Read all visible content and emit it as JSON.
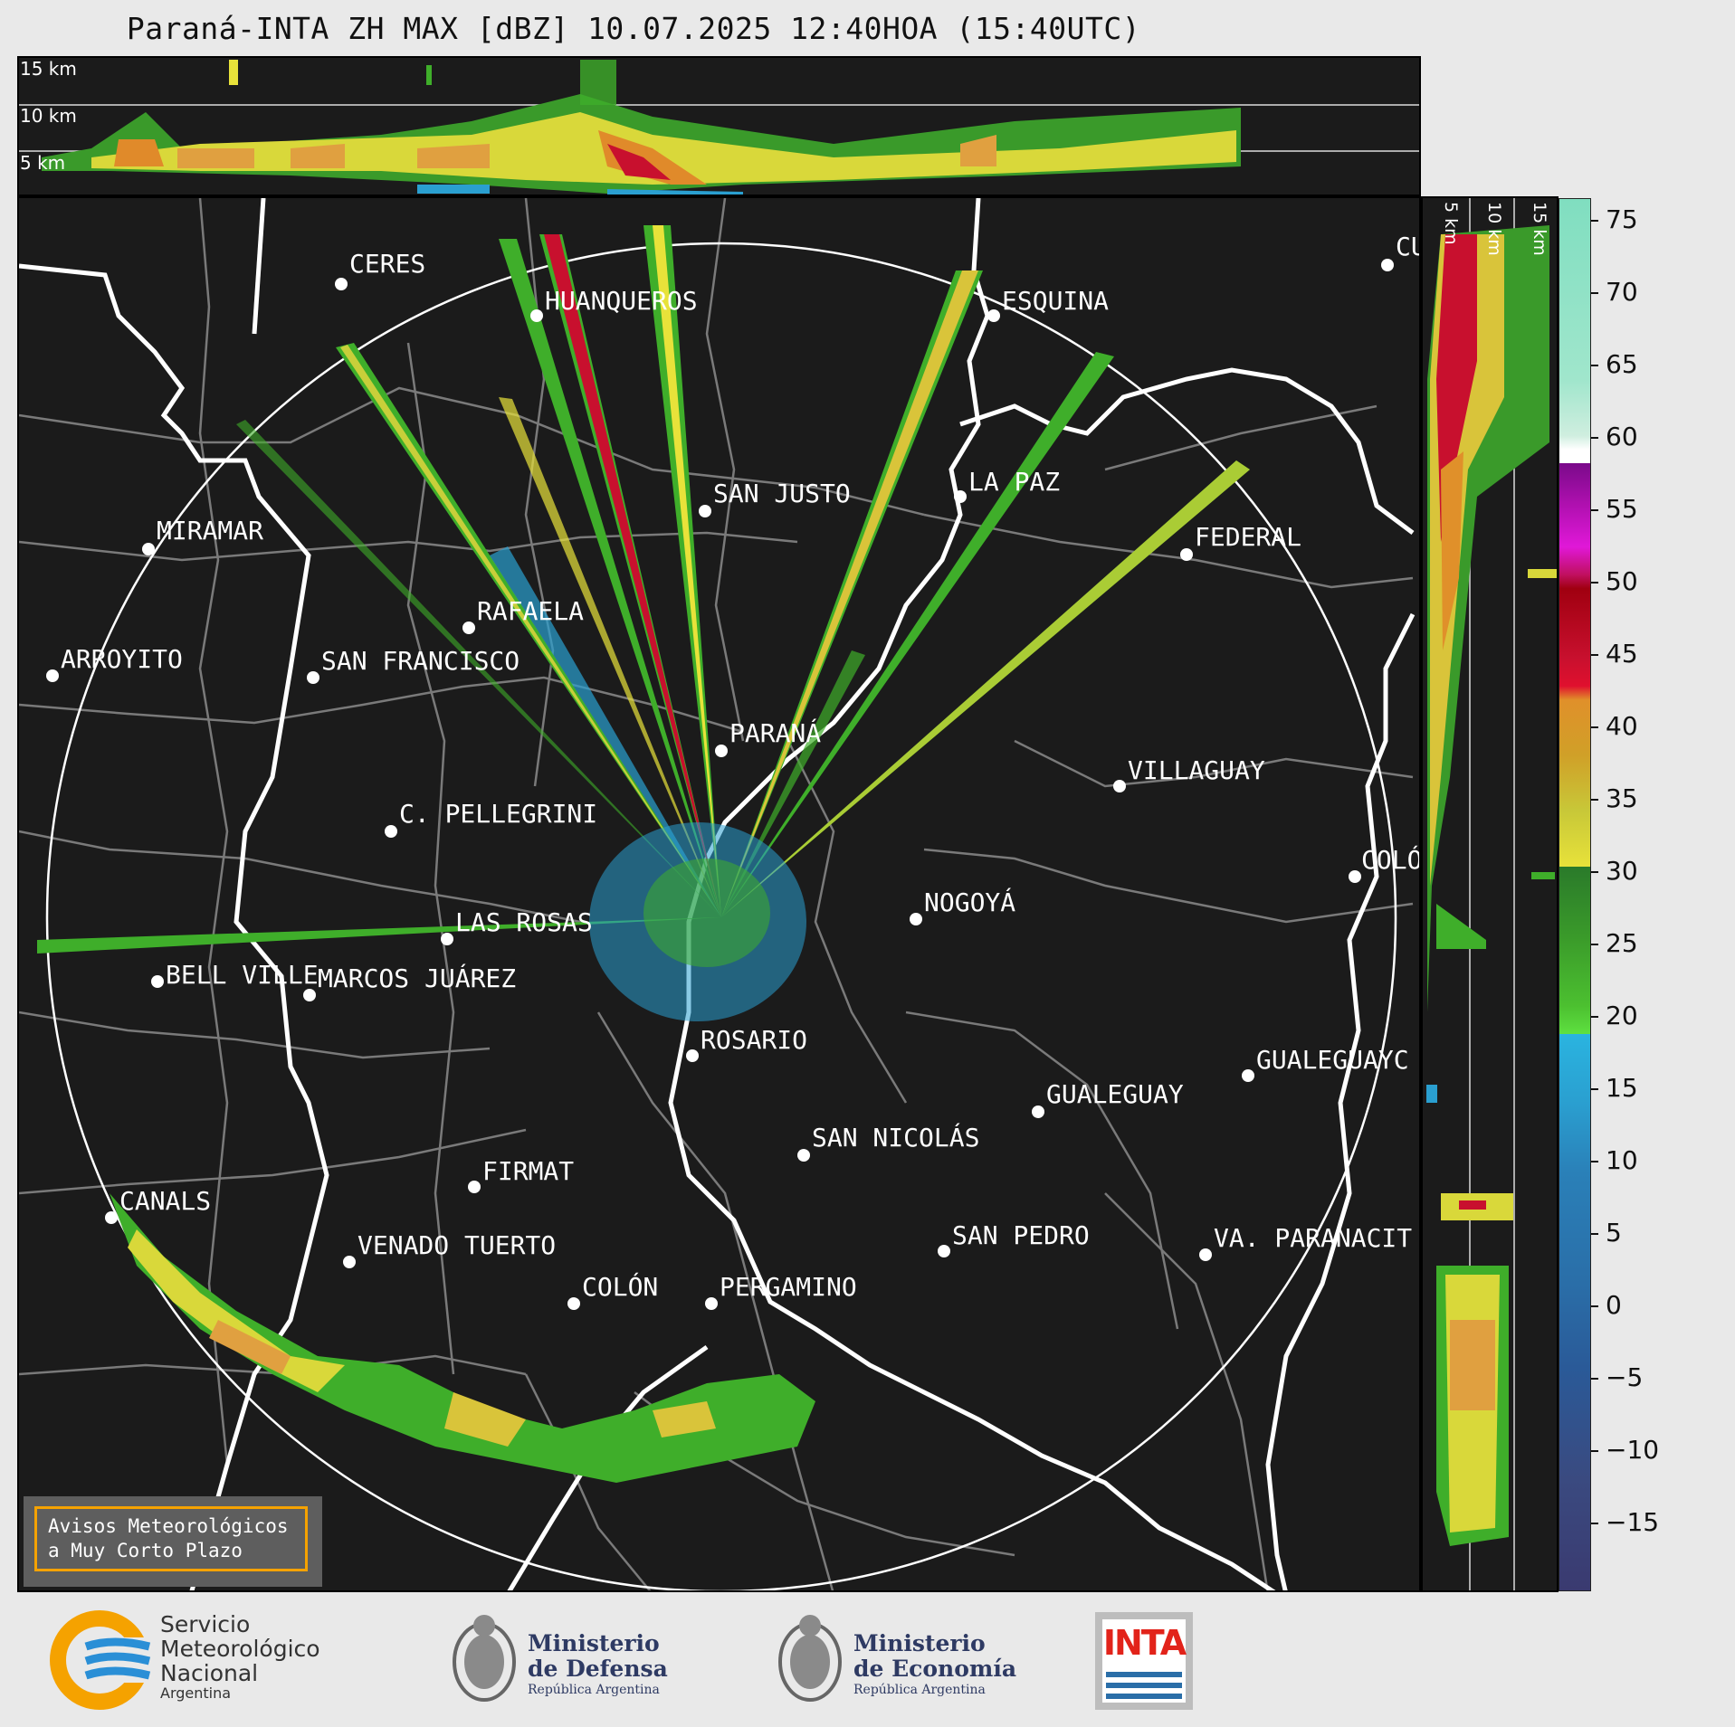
{
  "title": "Paraná-INTA ZH MAX [dBZ] 10.07.2025 12:40HOA (15:40UTC)",
  "height_labels": [
    "15 km",
    "10 km",
    "5 km"
  ],
  "side_labels": [
    "5 km",
    "10 km",
    "15 km"
  ],
  "colorbar": {
    "ticks": [
      "75",
      "70",
      "65",
      "60",
      "55",
      "50",
      "45",
      "40",
      "35",
      "30",
      "25",
      "20",
      "15",
      "10",
      "5",
      "0",
      "−5",
      "−10",
      "−15"
    ]
  },
  "cities": [
    "CERES",
    "HUANQUEROS",
    "ESQUINA",
    "CU",
    "MIRAMAR",
    "SAN JUSTO",
    "LA PAZ",
    "FEDERAL",
    "RAFAELA",
    "ARROYITO",
    "SAN FRANCISCO",
    "PARANÁ",
    "VILLAGUAY",
    "C. PELLEGRINI",
    "COLÓ",
    "NOGOYÁ",
    "LAS ROSAS",
    "BELL VILLE",
    "MARCOS JUÁREZ",
    "ROSARIO",
    "GUALEGUAYC",
    "GUALEGUAY",
    "SAN NICOLÁS",
    "FIRMAT",
    "CANALS",
    "SAN PEDRO",
    "VENADO TUERTO",
    "VA. PARANACIT",
    "COLÓN",
    "PERGAMINO"
  ],
  "notice": {
    "line1": "Avisos Meteorológicos",
    "line2": "a Muy Corto Plazo"
  },
  "footer": {
    "smn": {
      "line1": "Servicio",
      "line2": "Meteorológico",
      "line3": "Nacional",
      "line4": "Argentina"
    },
    "defensa": {
      "line1": "Ministerio",
      "line2": "de Defensa",
      "line3": "República Argentina"
    },
    "economia": {
      "line1": "Ministerio",
      "line2": "de Economía",
      "line3": "República Argentina"
    },
    "inta": "INTA"
  },
  "colors": {
    "background": "#1b1b1b",
    "green": "#3fae2a",
    "yellow": "#e8e23a",
    "orange": "#e0902a",
    "red": "#c8102e",
    "blue": "#2a9fd0",
    "smn_blue": "#2a8fd6",
    "smn_orange": "#f5a200",
    "inta_red": "#e2231a"
  }
}
